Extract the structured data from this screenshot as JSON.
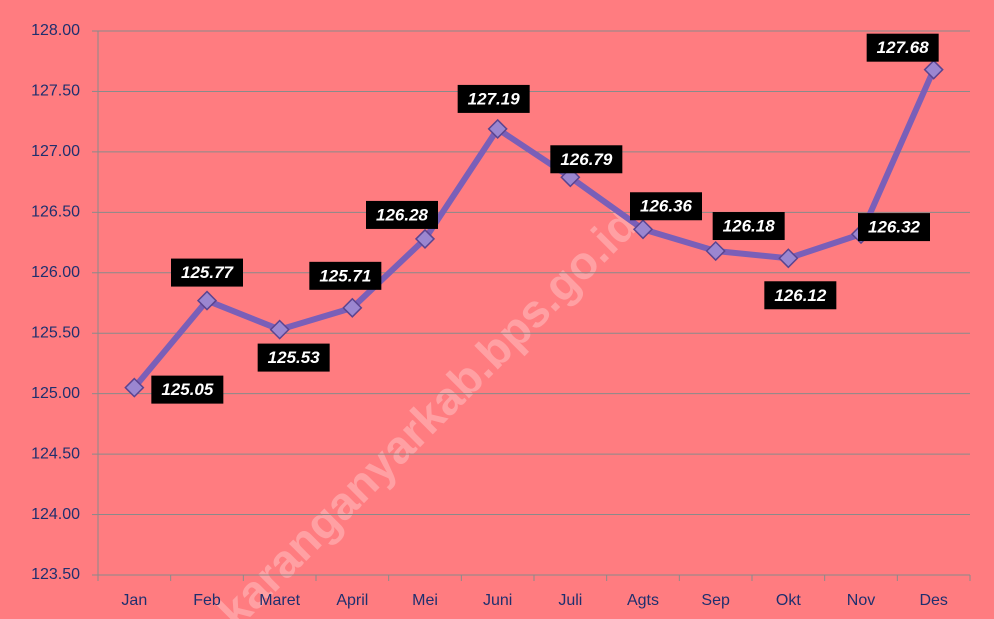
{
  "chart_data": {
    "type": "line",
    "watermark": "karanganyarkab.bps.go.id",
    "categories": [
      "Jan",
      "Feb",
      "Maret",
      "April",
      "Mei",
      "Juni",
      "Juli",
      "Agts",
      "Sep",
      "Okt",
      "Nov",
      "Des"
    ],
    "series": [
      {
        "name": "",
        "color": "#7a5fb8",
        "values": [
          125.05,
          125.77,
          125.53,
          125.71,
          126.28,
          127.19,
          126.79,
          126.36,
          126.18,
          126.12,
          126.32,
          127.68
        ]
      }
    ],
    "ylim": [
      123.5,
      128
    ],
    "yticks": [
      {
        "value": 123.5,
        "label": "123.50"
      },
      {
        "value": 124,
        "label": "124.00"
      },
      {
        "value": 124.5,
        "label": "124.50"
      },
      {
        "value": 125,
        "label": "125.00"
      },
      {
        "value": 125.5,
        "label": "125.50"
      },
      {
        "value": 126,
        "label": "126.00"
      },
      {
        "value": 126.5,
        "label": "126.50"
      },
      {
        "value": 127,
        "label": "127.00"
      },
      {
        "value": 127.5,
        "label": "127.50"
      },
      {
        "value": 128,
        "label": "128.00"
      }
    ],
    "grid": true
  }
}
